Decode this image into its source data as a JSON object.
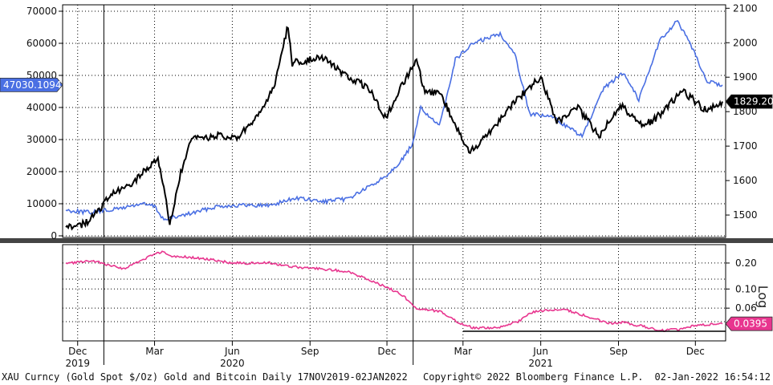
{
  "chart_data": [
    {
      "type": "line",
      "panel": "upper",
      "left_axis": {
        "ticks": [
          0,
          10000,
          20000,
          30000,
          40000,
          50000,
          60000,
          70000
        ],
        "labels": [
          "0",
          "10000",
          "20000",
          "30000",
          "40000",
          "50000",
          "60000",
          "70000"
        ],
        "range": [
          -500,
          72000
        ]
      },
      "right_axis": {
        "ticks": [
          1500,
          1600,
          1700,
          1800,
          1900,
          2000,
          2100
        ],
        "labels": [
          "1500",
          "1600",
          "1700",
          "1800",
          "1900",
          "2000",
          "2100"
        ],
        "range": [
          1435,
          2110
        ]
      },
      "grid": true,
      "series": [
        {
          "axis": "left",
          "color": "#4a6fe3",
          "last_label": "47030.1094",
          "x": [
            "2019-11-17",
            "2019-12-15",
            "2020-01-15",
            "2020-02-15",
            "2020-03-01",
            "2020-03-12",
            "2020-04-15",
            "2020-05-15",
            "2020-06-15",
            "2020-07-15",
            "2020-08-15",
            "2020-09-15",
            "2020-10-15",
            "2020-11-15",
            "2020-12-01",
            "2020-12-20",
            "2021-01-01",
            "2021-01-10",
            "2021-02-01",
            "2021-02-20",
            "2021-03-13",
            "2021-04-14",
            "2021-05-01",
            "2021-05-19",
            "2021-06-15",
            "2021-07-20",
            "2021-08-15",
            "2021-09-07",
            "2021-09-25",
            "2021-10-20",
            "2021-11-10",
            "2021-11-30",
            "2021-12-15",
            "2022-01-02"
          ],
          "y": [
            8000,
            7300,
            8300,
            10000,
            9200,
            5000,
            7100,
            9300,
            9500,
            9500,
            11800,
            10600,
            11500,
            16000,
            19000,
            24000,
            29000,
            40000,
            34000,
            55000,
            60000,
            63000,
            57000,
            38000,
            37000,
            31000,
            46000,
            51000,
            42500,
            61000,
            67000,
            57000,
            48000,
            47030.1094
          ]
        },
        {
          "axis": "right",
          "color": "#000000",
          "last_label": "1829.20",
          "x": [
            "2019-11-17",
            "2019-12-10",
            "2019-12-25",
            "2020-01-08",
            "2020-01-31",
            "2020-02-24",
            "2020-03-05",
            "2020-03-19",
            "2020-04-01",
            "2020-04-14",
            "2020-05-15",
            "2020-06-05",
            "2020-06-30",
            "2020-07-20",
            "2020-08-06",
            "2020-08-11",
            "2020-09-15",
            "2020-10-15",
            "2020-11-09",
            "2020-11-30",
            "2020-12-15",
            "2021-01-05",
            "2021-01-15",
            "2021-02-01",
            "2021-03-08",
            "2021-04-01",
            "2021-05-01",
            "2021-06-01",
            "2021-06-20",
            "2021-07-15",
            "2021-08-09",
            "2021-09-03",
            "2021-09-30",
            "2021-10-15",
            "2021-11-16",
            "2021-12-15",
            "2022-01-02"
          ],
          "y": [
            1465,
            1475,
            1510,
            1555,
            1585,
            1640,
            1670,
            1475,
            1620,
            1720,
            1730,
            1720,
            1780,
            1870,
            2050,
            1940,
            1960,
            1900,
            1870,
            1780,
            1860,
            1950,
            1850,
            1860,
            1680,
            1740,
            1830,
            1900,
            1770,
            1810,
            1730,
            1820,
            1760,
            1780,
            1860,
            1800,
            1829.2
          ]
        }
      ]
    },
    {
      "type": "line",
      "panel": "lower",
      "right_axis": {
        "ticks": [
          0.2,
          0.1,
          0.06
        ],
        "labels": [
          "0.20",
          "0.10",
          "0.06"
        ],
        "scale": "log"
      },
      "grid": true,
      "series": [
        {
          "color": "#e8368f",
          "last_label": "0.0395",
          "x": [
            "2019-11-17",
            "2019-12-20",
            "2020-01-25",
            "2020-03-10",
            "2020-03-20",
            "2020-04-20",
            "2020-06-01",
            "2020-07-15",
            "2020-08-15",
            "2020-09-15",
            "2020-10-15",
            "2020-11-15",
            "2020-12-15",
            "2021-01-05",
            "2021-02-01",
            "2021-02-25",
            "2021-03-15",
            "2021-04-15",
            "2021-05-05",
            "2021-05-25",
            "2021-06-30",
            "2021-07-20",
            "2021-08-20",
            "2021-09-07",
            "2021-10-20",
            "2021-11-10",
            "2021-12-01",
            "2022-01-02"
          ],
          "y": [
            0.2,
            0.21,
            0.17,
            0.27,
            0.24,
            0.23,
            0.2,
            0.2,
            0.18,
            0.17,
            0.16,
            0.12,
            0.09,
            0.06,
            0.055,
            0.04,
            0.035,
            0.036,
            0.042,
            0.055,
            0.058,
            0.05,
            0.04,
            0.041,
            0.033,
            0.034,
            0.038,
            0.0395
          ]
        }
      ]
    }
  ],
  "x_axis": {
    "months": [
      {
        "date": "2019-12-01",
        "label": "Dec"
      },
      {
        "date": "2020-03-01",
        "label": "Mar"
      },
      {
        "date": "2020-06-01",
        "label": "Jun"
      },
      {
        "date": "2020-09-01",
        "label": "Sep"
      },
      {
        "date": "2020-12-01",
        "label": "Dec"
      },
      {
        "date": "2021-03-01",
        "label": "Mar"
      },
      {
        "date": "2021-06-01",
        "label": "Jun"
      },
      {
        "date": "2021-09-01",
        "label": "Sep"
      },
      {
        "date": "2021-12-01",
        "label": "Dec"
      }
    ],
    "years": [
      {
        "date": "2019-12-01",
        "label": "2019"
      },
      {
        "date": "2020-06-01",
        "label": "2020"
      },
      {
        "date": "2021-06-01",
        "label": "2021"
      }
    ],
    "year_lines": [
      "2020-01-01",
      "2021-01-01"
    ],
    "start": "2019-11-17",
    "end": "2022-01-02"
  },
  "log_label": "Log",
  "footer": {
    "left": "XAU Curncy (Gold Spot  $/Oz) Gold and Bitcoin  Daily 17NOV2019-02JAN2022",
    "center": "Copyright© 2022 Bloomberg Finance L.P.",
    "right": "02-Jan-2022 16:54:12"
  }
}
